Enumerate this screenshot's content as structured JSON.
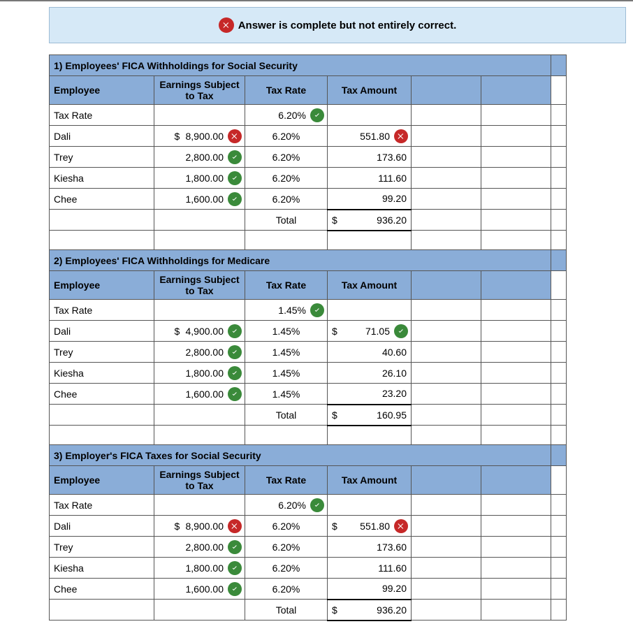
{
  "banner": {
    "text": "Answer is complete but not entirely correct.",
    "icon": "incorrect"
  },
  "colors": {
    "header_bg": "#8aadd8",
    "banner_bg": "#d6e9f7",
    "correct": "#3a8a3a",
    "incorrect": "#c62828"
  },
  "headers": {
    "employee": "Employee",
    "earnings": "Earnings Subject to Tax",
    "rate": "Tax Rate",
    "tax": "Tax Amount"
  },
  "labels": {
    "tax_rate_row": "Tax Rate",
    "total": "Total"
  },
  "sections": [
    {
      "title": "1) Employees' FICA Withholdings for Social Security",
      "tax_rate_header": {
        "rate": "6.20%",
        "status": "correct"
      },
      "rows": [
        {
          "name": "Dali",
          "earn_cur": "$",
          "earn": "8,900.00",
          "earn_status": "incorrect",
          "rate": "6.20%",
          "tax_cur": "",
          "tax": "551.80",
          "tax_status": "incorrect"
        },
        {
          "name": "Trey",
          "earn_cur": "",
          "earn": "2,800.00",
          "earn_status": "correct",
          "rate": "6.20%",
          "tax_cur": "",
          "tax": "173.60",
          "tax_status": null
        },
        {
          "name": "Kiesha",
          "earn_cur": "",
          "earn": "1,800.00",
          "earn_status": "correct",
          "rate": "6.20%",
          "tax_cur": "",
          "tax": "111.60",
          "tax_status": null
        },
        {
          "name": "Chee",
          "earn_cur": "",
          "earn": "1,600.00",
          "earn_status": "correct",
          "rate": "6.20%",
          "tax_cur": "",
          "tax": "99.20",
          "tax_status": null
        }
      ],
      "total": {
        "cur": "$",
        "amount": "936.20"
      }
    },
    {
      "title": "2) Employees' FICA Withholdings for Medicare",
      "tax_rate_header": {
        "rate": "1.45%",
        "status": "correct"
      },
      "rows": [
        {
          "name": "Dali",
          "earn_cur": "$",
          "earn": "4,900.00",
          "earn_status": "correct",
          "rate": "1.45%",
          "tax_cur": "$",
          "tax": "71.05",
          "tax_status": "correct"
        },
        {
          "name": "Trey",
          "earn_cur": "",
          "earn": "2,800.00",
          "earn_status": "correct",
          "rate": "1.45%",
          "tax_cur": "",
          "tax": "40.60",
          "tax_status": null
        },
        {
          "name": "Kiesha",
          "earn_cur": "",
          "earn": "1,800.00",
          "earn_status": "correct",
          "rate": "1.45%",
          "tax_cur": "",
          "tax": "26.10",
          "tax_status": null
        },
        {
          "name": "Chee",
          "earn_cur": "",
          "earn": "1,600.00",
          "earn_status": "correct",
          "rate": "1.45%",
          "tax_cur": "",
          "tax": "23.20",
          "tax_status": null
        }
      ],
      "total": {
        "cur": "$",
        "amount": "160.95"
      }
    },
    {
      "title": "3) Employer's FICA Taxes for Social Security",
      "tax_rate_header": {
        "rate": "6.20%",
        "status": "correct"
      },
      "rows": [
        {
          "name": "Dali",
          "earn_cur": "$",
          "earn": "8,900.00",
          "earn_status": "incorrect",
          "rate": "6.20%",
          "tax_cur": "$",
          "tax": "551.80",
          "tax_status": "incorrect"
        },
        {
          "name": "Trey",
          "earn_cur": "",
          "earn": "2,800.00",
          "earn_status": "correct",
          "rate": "6.20%",
          "tax_cur": "",
          "tax": "173.60",
          "tax_status": null
        },
        {
          "name": "Kiesha",
          "earn_cur": "",
          "earn": "1,800.00",
          "earn_status": "correct",
          "rate": "6.20%",
          "tax_cur": "",
          "tax": "111.60",
          "tax_status": null
        },
        {
          "name": "Chee",
          "earn_cur": "",
          "earn": "1,600.00",
          "earn_status": "correct",
          "rate": "6.20%",
          "tax_cur": "",
          "tax": "99.20",
          "tax_status": null
        }
      ],
      "total": {
        "cur": "$",
        "amount": "936.20"
      }
    }
  ]
}
